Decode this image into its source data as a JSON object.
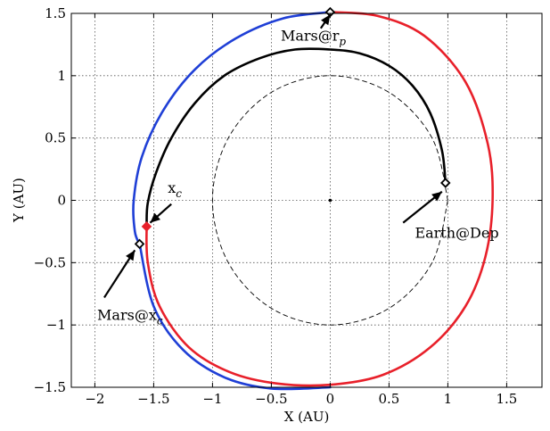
{
  "chart_data": {
    "type": "line",
    "title": "",
    "xlabel": "X (AU)",
    "ylabel": "Y (AU)",
    "xlim": [
      -2.2,
      1.8
    ],
    "ylim": [
      -1.5,
      1.5
    ],
    "xticks": [
      -2,
      -1.5,
      -1,
      -0.5,
      0,
      0.5,
      1,
      1.5
    ],
    "yticks": [
      -1.5,
      -1,
      -0.5,
      0,
      0.5,
      1,
      1.5
    ],
    "xtick_labels": [
      "−2",
      "−1.5",
      "−1",
      "−0.5",
      "0",
      "0.5",
      "1",
      "1.5"
    ],
    "ytick_labels": [
      "−1.5",
      "−1",
      "−0.5",
      "0",
      "0.5",
      "1",
      "1.5"
    ],
    "grid": true,
    "series": [
      {
        "style": "dashed",
        "color": "#000000",
        "x": [
          1.0,
          0.866,
          0.5,
          0.0,
          -0.5,
          -0.866,
          -1.0,
          -0.866,
          -0.5,
          0.0,
          0.5,
          0.866,
          1.0
        ],
        "y": [
          0.0,
          0.5,
          0.866,
          1.0,
          0.866,
          0.5,
          0.0,
          -0.5,
          -0.866,
          -1.0,
          -0.866,
          -0.5,
          0.0
        ]
      },
      {
        "color": "#000000",
        "x": [
          0.98,
          0.95,
          0.85,
          0.7,
          0.5,
          0.25,
          0.0,
          -0.3,
          -0.6,
          -0.9,
          -1.15,
          -1.35,
          -1.48,
          -1.55,
          -1.56
        ],
        "y": [
          0.14,
          0.4,
          0.7,
          0.92,
          1.08,
          1.18,
          1.21,
          1.21,
          1.14,
          1.0,
          0.78,
          0.5,
          0.22,
          -0.02,
          -0.2
        ]
      },
      {
        "color": "#1f3fd6",
        "x": [
          0.0,
          -0.4,
          -0.8,
          -1.15,
          -1.42,
          -1.6,
          -1.67,
          -1.66,
          -1.62
        ],
        "y": [
          1.51,
          1.46,
          1.3,
          1.05,
          0.72,
          0.35,
          0.0,
          -0.25,
          -0.35
        ]
      },
      {
        "color": "#1f3fd6",
        "x": [
          -1.62,
          -1.5,
          -1.25,
          -0.9,
          -0.5,
          0.0
        ],
        "y": [
          -0.35,
          -0.85,
          -1.2,
          -1.42,
          -1.51,
          -1.5
        ]
      },
      {
        "color": "#e8202a",
        "x": [
          -1.56,
          -1.55,
          -1.45,
          -1.2,
          -0.85,
          -0.45,
          0.0,
          0.45,
          0.85,
          1.15,
          1.32,
          1.38,
          1.34,
          1.15,
          0.8,
          0.4,
          0.0
        ],
        "y": [
          -0.2,
          -0.5,
          -0.85,
          -1.18,
          -1.38,
          -1.47,
          -1.48,
          -1.4,
          -1.18,
          -0.85,
          -0.45,
          0.0,
          0.45,
          0.95,
          1.32,
          1.48,
          1.51
        ]
      }
    ],
    "markers": [
      {
        "x": 0.98,
        "y": 0.14,
        "color": "#000000",
        "shape": "diamond"
      },
      {
        "x": 0.0,
        "y": 1.51,
        "color": "#000000",
        "shape": "diamond"
      },
      {
        "x": -1.62,
        "y": -0.35,
        "color": "#000000",
        "shape": "diamond"
      },
      {
        "x": -1.56,
        "y": -0.21,
        "color": "#e8202a",
        "shape": "diamond"
      },
      {
        "x": 0.0,
        "y": 0.0,
        "color": "#000000",
        "shape": "dot"
      }
    ],
    "annotations": [
      {
        "text_main": "Earth@Dep",
        "text_sub": "",
        "text_x": 0.72,
        "text_y": -0.3,
        "arrow_from": [
          0.62,
          -0.18
        ],
        "arrow_to": [
          0.95,
          0.07
        ]
      },
      {
        "text_main": "Mars@r",
        "text_sub": "p",
        "text_x": -0.42,
        "text_y": 1.28,
        "arrow_from": [
          -0.08,
          1.38
        ],
        "arrow_to": [
          0.0,
          1.49
        ]
      },
      {
        "text_main": "x",
        "text_sub": "c",
        "text_x": -1.38,
        "text_y": 0.06,
        "arrow_from": [
          -1.35,
          -0.03
        ],
        "arrow_to": [
          -1.53,
          -0.18
        ]
      },
      {
        "text_main": "Mars@x",
        "text_sub": "c",
        "text_x": -1.98,
        "text_y": -0.96,
        "arrow_from": [
          -1.92,
          -0.78
        ],
        "arrow_to": [
          -1.66,
          -0.4
        ]
      }
    ]
  }
}
